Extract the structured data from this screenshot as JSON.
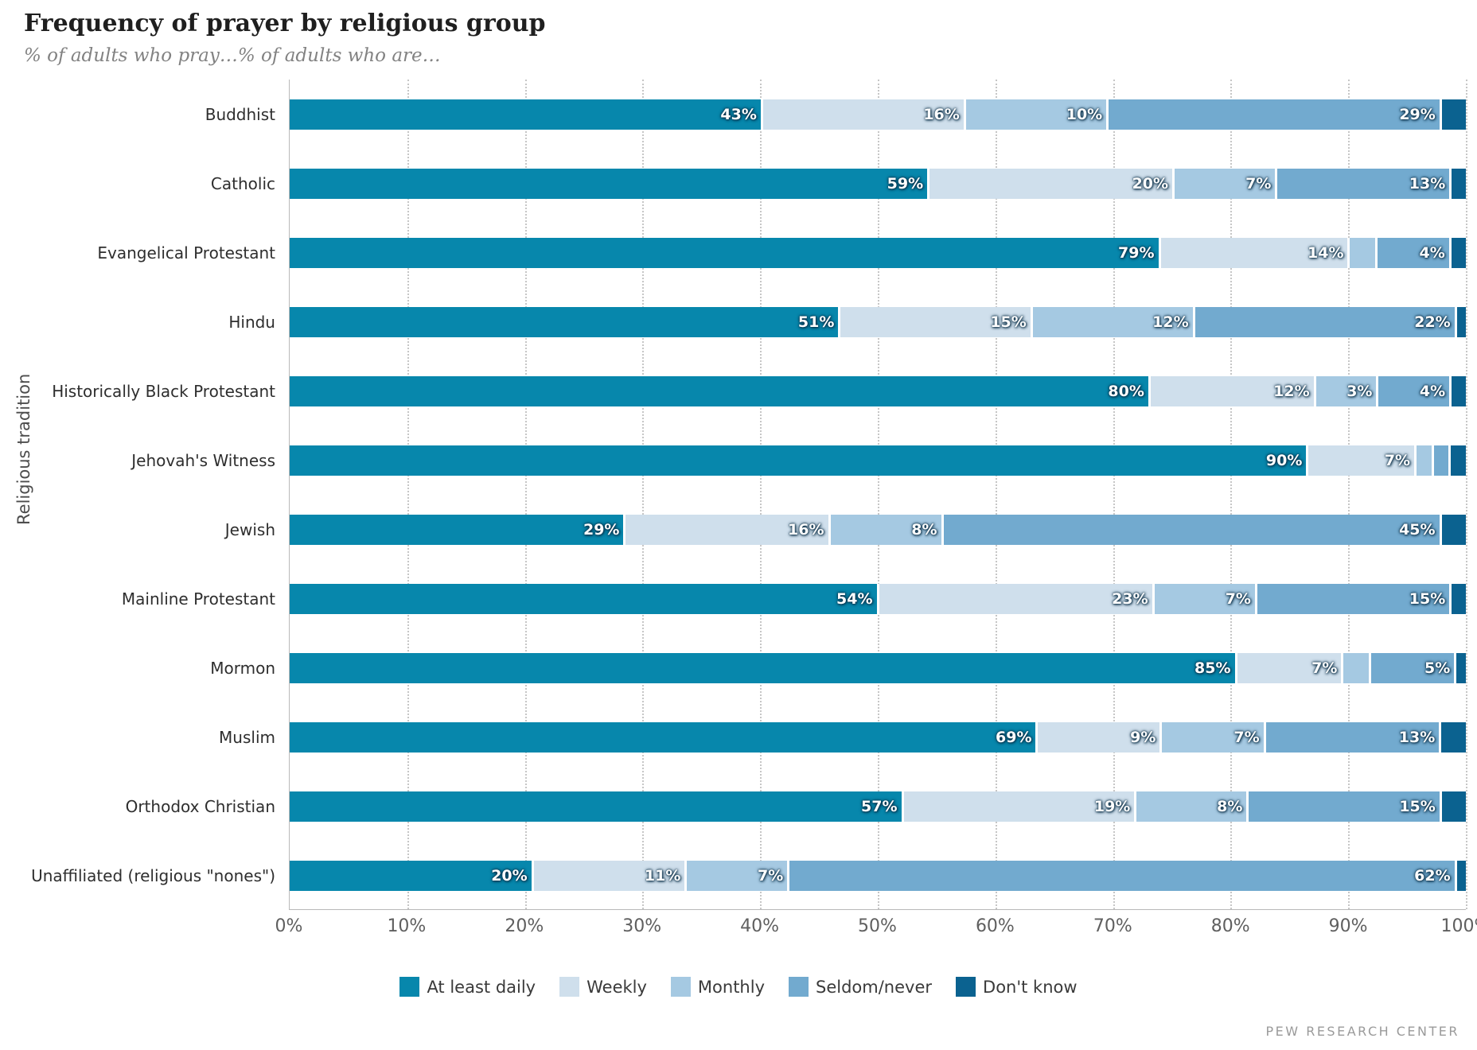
{
  "title": "Frequency of prayer by religious group",
  "subtitle": "% of adults who pray…% of adults who are…",
  "source": "PEW RESEARCH CENTER",
  "chart_data": {
    "type": "bar",
    "orientation": "horizontal",
    "stacked": true,
    "title": "Frequency of prayer by religious group",
    "subtitle": "% of adults who pray…% of adults who are…",
    "xlabel": "",
    "ylabel": "Religious tradition",
    "xlim": [
      0,
      100
    ],
    "grid": "vertical-dotted",
    "legend_position": "bottom",
    "label_min": 3,
    "x_ticks": [
      "0%",
      "10%",
      "20%",
      "30%",
      "40%",
      "50%",
      "60%",
      "70%",
      "80%",
      "90%",
      "100%"
    ],
    "categories": [
      "Buddhist",
      "Catholic",
      "Evangelical Protestant",
      "Hindu",
      "Historically Black Protestant",
      "Jehovah's Witness",
      "Jewish",
      "Mainline Protestant",
      "Mormon",
      "Muslim",
      "Orthodox Christian",
      "Unaffiliated (religious \"nones\")"
    ],
    "series": [
      {
        "name": "At least daily",
        "color": "#0787ac",
        "labeled": true,
        "values": [
          43,
          59,
          79,
          51,
          80,
          90,
          29,
          54,
          85,
          69,
          57,
          20
        ]
      },
      {
        "name": "Weekly",
        "color": "#cfdfec",
        "labeled": true,
        "values": [
          16,
          20,
          14,
          15,
          12,
          7,
          16,
          23,
          7,
          9,
          19,
          11
        ]
      },
      {
        "name": "Monthly",
        "color": "#a5c9e2",
        "labeled": true,
        "values": [
          10,
          7,
          2,
          12,
          3,
          1,
          8,
          7,
          2,
          7,
          8,
          7
        ]
      },
      {
        "name": "Seldom/never",
        "color": "#72aacf",
        "labeled": true,
        "values": [
          29,
          13,
          4,
          22,
          4,
          1,
          45,
          15,
          5,
          13,
          15,
          62
        ]
      },
      {
        "name": "Don't know",
        "color": "#0b6290",
        "labeled": false,
        "values": [
          2,
          1,
          1,
          0.5,
          1,
          1,
          2,
          1,
          0.5,
          2,
          2,
          0.5
        ]
      }
    ]
  }
}
